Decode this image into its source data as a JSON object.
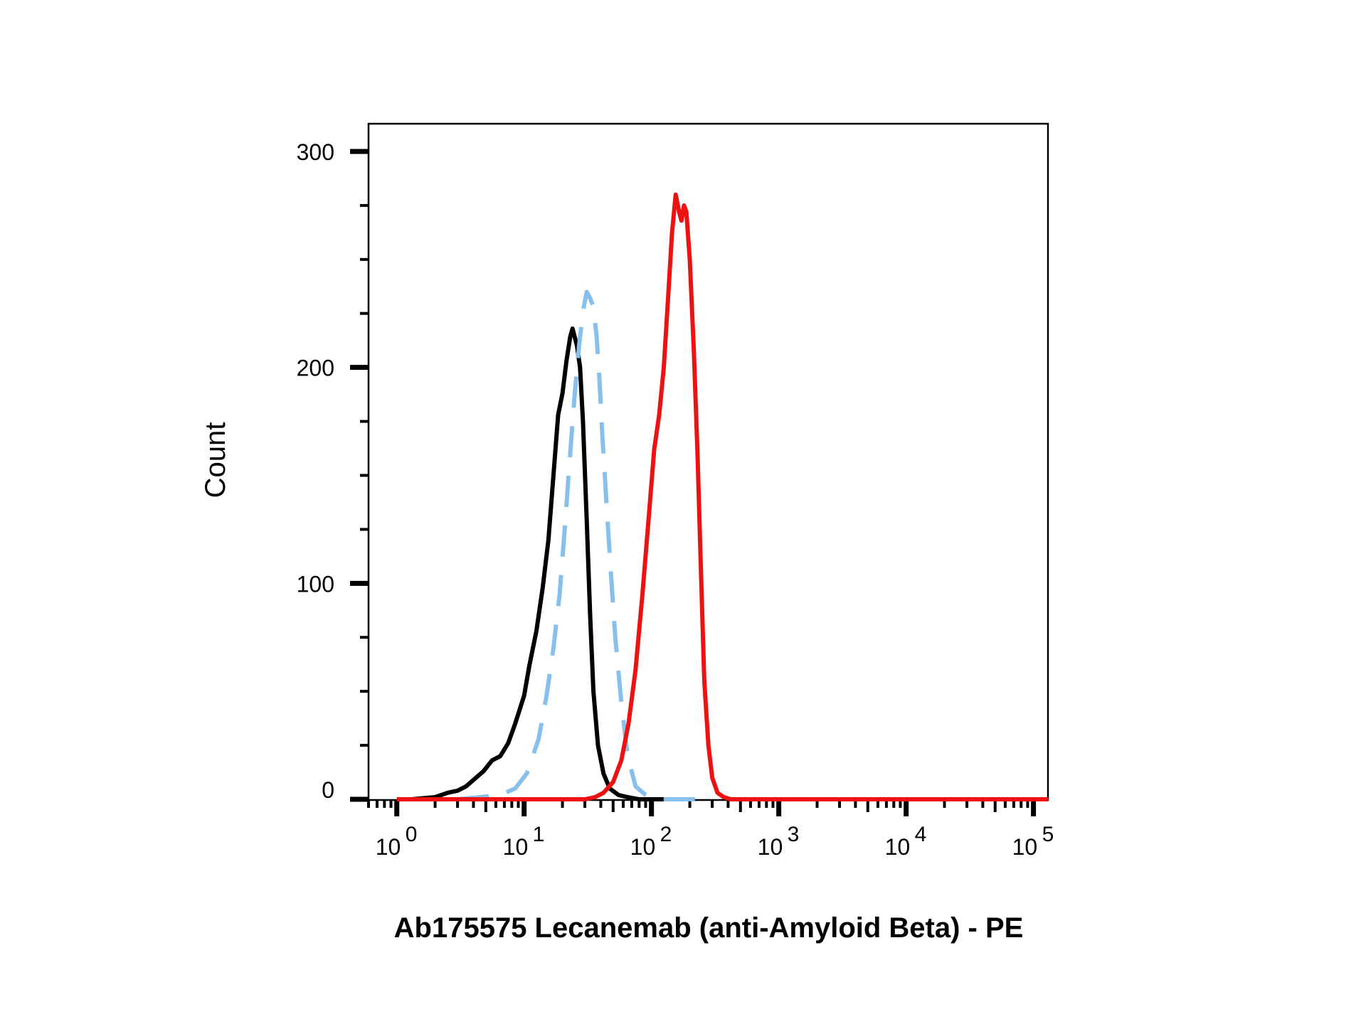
{
  "chart_data": {
    "type": "line",
    "xlabel": "Ab175575 Lecanemab (anti-Amyloid Beta) - PE",
    "ylabel": "Count",
    "x_scale": "log",
    "xlim": [
      0.6,
      130000
    ],
    "ylim": [
      0,
      315
    ],
    "y_ticks": [
      {
        "value": 0,
        "label": "0"
      },
      {
        "value": 100,
        "label": "100"
      },
      {
        "value": 200,
        "label": "200"
      },
      {
        "value": 300,
        "label": "300"
      }
    ],
    "x_ticks": [
      {
        "value": 1,
        "base": "10",
        "exp": "0"
      },
      {
        "value": 10,
        "base": "10",
        "exp": "1"
      },
      {
        "value": 100,
        "base": "10",
        "exp": "2"
      },
      {
        "value": 1000,
        "base": "10",
        "exp": "3"
      },
      {
        "value": 10000,
        "base": "10",
        "exp": "4"
      },
      {
        "value": 100000,
        "base": "10",
        "exp": "5"
      }
    ],
    "grid": false,
    "legend": "none",
    "series": [
      {
        "color": "#000000",
        "style": "solid",
        "x": [
          1.3,
          2.0,
          2.5,
          3.0,
          3.5,
          4.0,
          4.8,
          5.6,
          6.5,
          7.5,
          8.5,
          10,
          11,
          12.5,
          14,
          15.5,
          17,
          18.5,
          20,
          21.5,
          23,
          24,
          25,
          26,
          27.5,
          29,
          31,
          33,
          35,
          38,
          42,
          47,
          55,
          65,
          80,
          100,
          130
        ],
        "y": [
          0,
          1,
          3,
          4,
          6,
          9,
          13,
          18,
          20,
          26,
          35,
          48,
          62,
          78,
          98,
          120,
          150,
          178,
          188,
          203,
          214,
          218,
          214,
          210,
          200,
          175,
          130,
          85,
          50,
          25,
          12,
          5,
          2,
          1,
          0,
          0,
          0
        ]
      },
      {
        "color": "#88C0EC",
        "style": "dashed",
        "x": [
          3.0,
          4.5,
          6.5,
          8.5,
          10.5,
          13,
          15,
          17,
          19,
          21,
          23,
          25,
          27,
          29,
          31,
          33,
          35,
          37,
          39,
          41,
          44,
          48,
          52,
          58,
          65,
          75,
          90,
          110,
          150,
          250
        ],
        "y": [
          0,
          1,
          2,
          5,
          12,
          28,
          48,
          70,
          95,
          128,
          160,
          188,
          210,
          226,
          235,
          232,
          228,
          215,
          195,
          170,
          140,
          105,
          75,
          45,
          20,
          6,
          2,
          0,
          0,
          0
        ]
      },
      {
        "color": "#EE1111",
        "style": "solid",
        "x": [
          1.0,
          20,
          30,
          36,
          42,
          50,
          58,
          66,
          75,
          85,
          95,
          105,
          115,
          125,
          135,
          145,
          155,
          165,
          172,
          180,
          188,
          200,
          215,
          230,
          245,
          260,
          280,
          300,
          330,
          370,
          420,
          500,
          1000,
          10000,
          130000
        ],
        "y": [
          0,
          0,
          0,
          1,
          3,
          8,
          18,
          35,
          60,
          95,
          130,
          162,
          178,
          200,
          232,
          262,
          280,
          272,
          268,
          275,
          272,
          250,
          208,
          160,
          105,
          55,
          25,
          10,
          3,
          1,
          0,
          0,
          0,
          0,
          0
        ]
      }
    ]
  }
}
